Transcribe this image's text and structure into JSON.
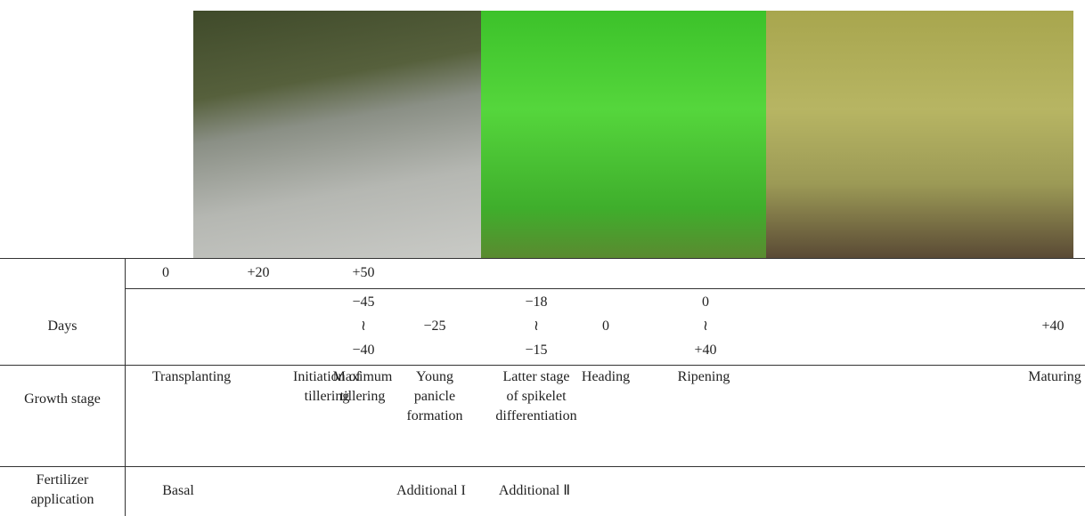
{
  "table": {
    "row_headers": [
      [
        "Days"
      ],
      [
        "Growth stage"
      ],
      [
        "Fertilizer",
        "application"
      ]
    ],
    "days": {
      "top": [
        "0",
        "+20",
        "+50"
      ],
      "bottom": [
        [
          "−45",
          "≀",
          "−40"
        ],
        [
          "−25"
        ],
        [
          "−18",
          "≀",
          "−15"
        ],
        [
          "0"
        ],
        [
          "0",
          "≀",
          "+40"
        ],
        [
          "+40"
        ]
      ]
    },
    "growth_stages": [
      [
        "Transplanting"
      ],
      [
        "Initiation of",
        "tillering"
      ],
      [
        "Maximum",
        "tillering"
      ],
      [
        "Young",
        "panicle",
        "formation"
      ],
      [
        "Latter stage",
        "of spikelet",
        "differentiation"
      ],
      [
        "Heading"
      ],
      [
        "Ripening"
      ],
      [
        "Maturing"
      ]
    ],
    "fertilizer": [
      "Basal",
      "Additional I",
      "Additional Ⅱ"
    ]
  }
}
